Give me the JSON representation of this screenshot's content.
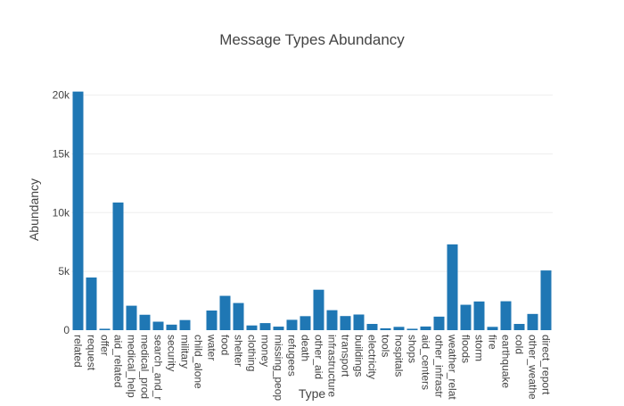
{
  "chart_data": {
    "type": "bar",
    "title": "Message Types Abundancy",
    "xlabel": "Type",
    "ylabel": "Abundancy",
    "ylim": [
      0,
      20500
    ],
    "yticks": [
      0,
      5000,
      10000,
      15000,
      20000
    ],
    "ytick_labels": [
      "0",
      "5k",
      "10k",
      "15k",
      "20k"
    ],
    "grid": true,
    "bar_color": "#1f77b4",
    "categories": [
      "related",
      "request",
      "offer",
      "aid_related",
      "medical_help",
      "medical_prod",
      "search_and_r",
      "security",
      "military",
      "child_alone",
      "water",
      "food",
      "shelter",
      "clothing",
      "money",
      "missing_peop",
      "refugees",
      "death",
      "other_aid",
      "infrastructure",
      "transport",
      "buildings",
      "electricity",
      "tools",
      "hospitals",
      "shops",
      "aid_centers",
      "other_infrastr",
      "weather_relat",
      "floods",
      "storm",
      "fire",
      "earthquake",
      "cold",
      "other_weathe",
      "direct_report"
    ],
    "values": [
      20300,
      4480,
      120,
      10860,
      2080,
      1310,
      720,
      470,
      860,
      0,
      1670,
      2920,
      2310,
      400,
      600,
      300,
      880,
      1190,
      3440,
      1700,
      1200,
      1330,
      530,
      160,
      280,
      120,
      310,
      1150,
      7300,
      2160,
      2440,
      280,
      2460,
      530,
      1380,
      5080
    ]
  }
}
